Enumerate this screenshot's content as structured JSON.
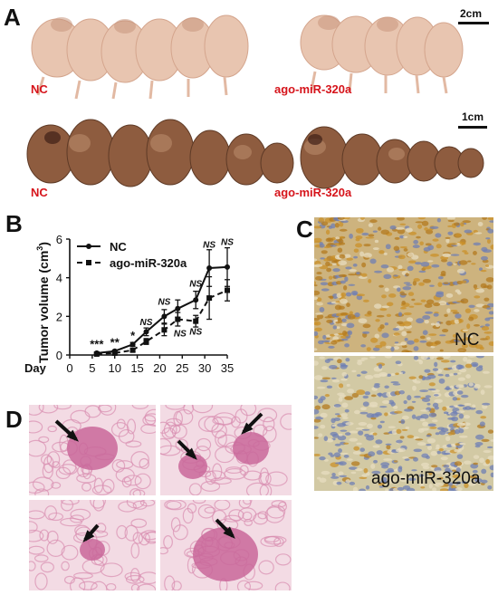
{
  "panels": {
    "a": "A",
    "b": "B",
    "c": "C",
    "d": "D"
  },
  "panel_a": {
    "top_left_label": "NC",
    "top_right_label": "ago-miR-320a",
    "top_scale": "2cm",
    "bottom_left_label": "NC",
    "bottom_right_label": "ago-miR-320a",
    "bottom_scale": "1cm"
  },
  "panel_c": {
    "top_label": "NC",
    "bottom_label": "ago-miR-320a"
  },
  "chart_data": {
    "type": "line",
    "ylabel_main": "Tumor volume (cm",
    "ylabel_sup": "3",
    "ylabel_end": ")",
    "xlabel": "Day",
    "xlim": [
      0,
      35
    ],
    "ylim": [
      0,
      6
    ],
    "x_ticks": [
      "0",
      "5",
      "10",
      "15",
      "20",
      "25",
      "30",
      "35"
    ],
    "y_ticks": [
      "0",
      "2",
      "4",
      "6"
    ],
    "x": [
      6,
      10,
      14,
      17,
      21,
      24,
      28,
      31,
      35
    ],
    "series": [
      {
        "name": "NC",
        "style": "solid",
        "marker": "circle",
        "values": [
          0.1,
          0.2,
          0.55,
          1.2,
          2.0,
          2.4,
          2.85,
          4.5,
          4.55
        ],
        "err": [
          0.05,
          0.05,
          0.1,
          0.2,
          0.35,
          0.45,
          0.45,
          0.95,
          1.0
        ]
      },
      {
        "name": "ago-miR-320a",
        "style": "dashed",
        "marker": "square",
        "values": [
          0.05,
          0.1,
          0.25,
          0.7,
          1.3,
          1.85,
          1.75,
          2.95,
          3.35
        ],
        "err": [
          0.03,
          0.03,
          0.08,
          0.15,
          0.3,
          0.35,
          0.3,
          1.1,
          0.55
        ]
      }
    ],
    "annotations": [
      {
        "text": "***",
        "x": 6,
        "y": 0.35
      },
      {
        "text": "**",
        "x": 10,
        "y": 0.45
      },
      {
        "text": "*",
        "x": 14,
        "y": 0.8
      },
      {
        "text": "NS",
        "x": 17,
        "y": 1.55
      },
      {
        "text": "NS",
        "x": 21,
        "y": 2.6
      },
      {
        "text": "NS",
        "x": 24.5,
        "y": 0.95
      },
      {
        "text": "NS",
        "x": 28,
        "y": 3.55
      },
      {
        "text": "NS",
        "x": 28,
        "y": 1.05
      },
      {
        "text": "NS",
        "x": 31,
        "y": 5.55
      },
      {
        "text": "NS",
        "x": 35,
        "y": 5.7
      }
    ]
  },
  "colors": {
    "label_red": "#d6141b",
    "mouse": "#e9c6b2",
    "tumor": "#8a5a3e",
    "ihc_bg": "#cdb98a",
    "he_bg": "#f2d8e2"
  }
}
